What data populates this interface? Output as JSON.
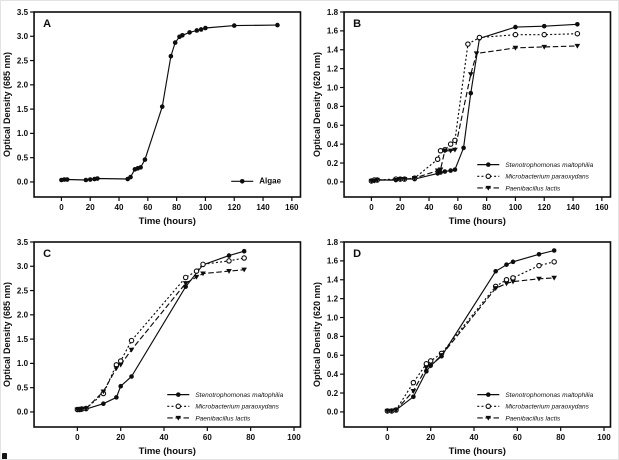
{
  "figure": {
    "background": "#ffffff",
    "ink_color": "#0d0d0d",
    "panels": [
      "A",
      "B",
      "C",
      "D"
    ]
  },
  "chart_data": [
    {
      "type": "line",
      "panel_label": "A",
      "xlabel": "Time (hours)",
      "ylabel": "Optical Density (685 nm)",
      "x_domain": [
        -19,
        166
      ],
      "y_domain": [
        -0.31,
        3.5
      ],
      "xticks": {
        "values": [
          0,
          20,
          40,
          60,
          80,
          100,
          120,
          140,
          160
        ],
        "labels": [
          "0",
          "20",
          "40",
          "60",
          "80",
          "100",
          "120",
          "140",
          "160"
        ]
      },
      "yticks": {
        "values": [
          0,
          0.5,
          1.0,
          1.5,
          2.0,
          2.5,
          3.0,
          3.5
        ],
        "labels": [
          "0.0",
          "0.5",
          "1.0",
          "1.5",
          "2.0",
          "2.5",
          "3.0",
          "3.5"
        ]
      },
      "grid": false,
      "legend": {
        "x_frac": 0.74,
        "row_fracs": [
          0.915
        ],
        "italic": false,
        "font_size": 8,
        "bold": true
      },
      "series": [
        {
          "name": "Algae",
          "marker": "circle-filled",
          "line": "solid",
          "color": "#0d0d0d",
          "points": [
            [
              0,
              0.04
            ],
            [
              2,
              0.05
            ],
            [
              4,
              0.05
            ],
            [
              17,
              0.04
            ],
            [
              20,
              0.05
            ],
            [
              23,
              0.06
            ],
            [
              25,
              0.07
            ],
            [
              46,
              0.06
            ],
            [
              48,
              0.1
            ],
            [
              51,
              0.26
            ],
            [
              53,
              0.28
            ],
            [
              55,
              0.3
            ],
            [
              58,
              0.46
            ],
            [
              70,
              1.55
            ],
            [
              76,
              2.59
            ],
            [
              79,
              2.87
            ],
            [
              82,
              2.99
            ],
            [
              84,
              3.02
            ],
            [
              89,
              3.08
            ],
            [
              94,
              3.12
            ],
            [
              97,
              3.14
            ],
            [
              100,
              3.17
            ],
            [
              120,
              3.22
            ],
            [
              150,
              3.23
            ]
          ]
        }
      ]
    },
    {
      "type": "line",
      "panel_label": "B",
      "xlabel": "Time (hours)",
      "ylabel": "Optical Density (620 nm)",
      "x_domain": [
        -19,
        166
      ],
      "y_domain": [
        -0.16,
        1.8
      ],
      "xticks": {
        "values": [
          0,
          20,
          40,
          60,
          80,
          100,
          120,
          140,
          160
        ],
        "labels": [
          "0",
          "20",
          "40",
          "60",
          "80",
          "100",
          "120",
          "140",
          "160"
        ]
      },
      "yticks": {
        "values": [
          0,
          0.2,
          0.4,
          0.6,
          0.8,
          1.0,
          1.2,
          1.4,
          1.6,
          1.8
        ],
        "labels": [
          "0.0",
          "0.2",
          "0.4",
          "0.6",
          "0.8",
          "1.0",
          "1.2",
          "1.4",
          "1.6",
          "1.8"
        ]
      },
      "grid": false,
      "legend": {
        "x_frac": 0.5,
        "row_fracs": [
          0.825,
          0.888,
          0.951
        ],
        "italic": true,
        "font_size": 6.5,
        "bold": false
      },
      "series": [
        {
          "name": "Stenotrophomonas maltophilia",
          "marker": "circle-filled",
          "line": "solid",
          "color": "#0d0d0d",
          "points": [
            [
              0,
              0.01
            ],
            [
              2,
              0.02
            ],
            [
              4,
              0.02
            ],
            [
              17,
              0.02
            ],
            [
              20,
              0.03
            ],
            [
              23,
              0.03
            ],
            [
              30,
              0.03
            ],
            [
              46,
              0.09
            ],
            [
              48,
              0.1
            ],
            [
              51,
              0.11
            ],
            [
              55,
              0.12
            ],
            [
              58,
              0.13
            ],
            [
              64,
              0.36
            ],
            [
              69,
              0.94
            ],
            [
              75,
              1.52
            ],
            [
              100,
              1.64
            ],
            [
              120,
              1.65
            ],
            [
              143,
              1.67
            ]
          ]
        },
        {
          "name": "Microbacterium paraoxydans",
          "marker": "circle-open",
          "line": "dotted",
          "color": "#0d0d0d",
          "points": [
            [
              0,
              0.01
            ],
            [
              2,
              0.02
            ],
            [
              4,
              0.02
            ],
            [
              17,
              0.03
            ],
            [
              20,
              0.03
            ],
            [
              23,
              0.03
            ],
            [
              30,
              0.04
            ],
            [
              46,
              0.24
            ],
            [
              48,
              0.33
            ],
            [
              51,
              0.34
            ],
            [
              55,
              0.4
            ],
            [
              58,
              0.44
            ],
            [
              67,
              1.46
            ],
            [
              75,
              1.53
            ],
            [
              100,
              1.56
            ],
            [
              120,
              1.56
            ],
            [
              143,
              1.57
            ]
          ]
        },
        {
          "name": "Paenibacillus lactis",
          "marker": "triangle-down-filled",
          "line": "dashed",
          "color": "#0d0d0d",
          "points": [
            [
              0,
              0.01
            ],
            [
              2,
              0.01
            ],
            [
              4,
              0.02
            ],
            [
              17,
              0.02
            ],
            [
              20,
              0.03
            ],
            [
              23,
              0.03
            ],
            [
              30,
              0.04
            ],
            [
              46,
              0.12
            ],
            [
              48,
              0.13
            ],
            [
              51,
              0.33
            ],
            [
              55,
              0.33
            ],
            [
              58,
              0.34
            ],
            [
              69,
              1.14
            ],
            [
              73,
              1.36
            ],
            [
              100,
              1.42
            ],
            [
              120,
              1.43
            ],
            [
              143,
              1.44
            ]
          ]
        }
      ]
    },
    {
      "type": "line",
      "panel_label": "C",
      "xlabel": "Time (hours)",
      "ylabel": "Optical Density (685 nm)",
      "x_domain": [
        -20,
        103
      ],
      "y_domain": [
        -0.31,
        3.5
      ],
      "xticks": {
        "values": [
          0,
          20,
          40,
          60,
          80,
          100
        ],
        "labels": [
          "0",
          "20",
          "40",
          "60",
          "80",
          "100"
        ]
      },
      "yticks": {
        "values": [
          0,
          0.5,
          1.0,
          1.5,
          2.0,
          2.5,
          3.0,
          3.5
        ],
        "labels": [
          "0.0",
          "0.5",
          "1.0",
          "1.5",
          "2.0",
          "2.5",
          "3.0",
          "3.5"
        ]
      },
      "grid": false,
      "legend": {
        "x_frac": 0.5,
        "row_fracs": [
          0.825,
          0.888,
          0.951
        ],
        "italic": true,
        "font_size": 6.5,
        "bold": false
      },
      "series": [
        {
          "name": "Stenotrophomonas maltophilia",
          "marker": "circle-filled",
          "line": "solid",
          "color": "#0d0d0d",
          "points": [
            [
              0,
              0.05
            ],
            [
              1,
              0.05
            ],
            [
              2,
              0.05
            ],
            [
              4,
              0.06
            ],
            [
              12,
              0.17
            ],
            [
              18,
              0.3
            ],
            [
              20,
              0.53
            ],
            [
              25,
              0.73
            ],
            [
              50,
              2.58
            ],
            [
              58,
              3.03
            ],
            [
              70,
              3.22
            ],
            [
              77,
              3.31
            ]
          ]
        },
        {
          "name": "Microbacterium paraoxydans",
          "marker": "circle-open",
          "line": "dotted",
          "color": "#0d0d0d",
          "points": [
            [
              0,
              0.05
            ],
            [
              1,
              0.05
            ],
            [
              2,
              0.06
            ],
            [
              4,
              0.07
            ],
            [
              12,
              0.38
            ],
            [
              18,
              0.97
            ],
            [
              20,
              1.05
            ],
            [
              25,
              1.47
            ],
            [
              50,
              2.77
            ],
            [
              55,
              2.9
            ],
            [
              58,
              3.04
            ],
            [
              70,
              3.11
            ],
            [
              77,
              3.17
            ]
          ]
        },
        {
          "name": "Paenibacillus lactis",
          "marker": "triangle-down-filled",
          "line": "dashed",
          "color": "#0d0d0d",
          "points": [
            [
              0,
              0.05
            ],
            [
              1,
              0.05
            ],
            [
              2,
              0.06
            ],
            [
              4,
              0.07
            ],
            [
              12,
              0.42
            ],
            [
              18,
              0.9
            ],
            [
              20,
              0.97
            ],
            [
              25,
              1.28
            ],
            [
              50,
              2.65
            ],
            [
              55,
              2.78
            ],
            [
              58,
              2.85
            ],
            [
              70,
              2.9
            ],
            [
              77,
              2.93
            ]
          ]
        }
      ]
    },
    {
      "type": "line",
      "panel_label": "D",
      "xlabel": "Time (hours)",
      "ylabel": "Optical Density (620 nm)",
      "x_domain": [
        -20,
        103
      ],
      "y_domain": [
        -0.16,
        1.8
      ],
      "xticks": {
        "values": [
          0,
          20,
          40,
          60,
          80,
          100
        ],
        "labels": [
          "0",
          "20",
          "40",
          "60",
          "80",
          "100"
        ]
      },
      "yticks": {
        "values": [
          0,
          0.2,
          0.4,
          0.6,
          0.8,
          1.0,
          1.2,
          1.4,
          1.6,
          1.8
        ],
        "labels": [
          "0.0",
          "0.2",
          "0.4",
          "0.6",
          "0.8",
          "1.0",
          "1.2",
          "1.4",
          "1.6",
          "1.8"
        ]
      },
      "grid": false,
      "legend": {
        "x_frac": 0.5,
        "row_fracs": [
          0.825,
          0.888,
          0.951
        ],
        "italic": true,
        "font_size": 6.5,
        "bold": false
      },
      "series": [
        {
          "name": "Stenotrophomonas maltophilia",
          "marker": "circle-filled",
          "line": "solid",
          "color": "#0d0d0d",
          "points": [
            [
              0,
              0.01
            ],
            [
              2,
              0.01
            ],
            [
              4,
              0.02
            ],
            [
              12,
              0.16
            ],
            [
              18,
              0.43
            ],
            [
              20,
              0.49
            ],
            [
              25,
              0.59
            ],
            [
              50,
              1.49
            ],
            [
              55,
              1.56
            ],
            [
              58,
              1.59
            ],
            [
              70,
              1.67
            ],
            [
              77,
              1.71
            ]
          ]
        },
        {
          "name": "Microbacterium paraoxydans",
          "marker": "circle-open",
          "line": "dotted",
          "color": "#0d0d0d",
          "points": [
            [
              0,
              0.01
            ],
            [
              2,
              0.01
            ],
            [
              4,
              0.02
            ],
            [
              12,
              0.31
            ],
            [
              18,
              0.51
            ],
            [
              20,
              0.54
            ],
            [
              25,
              0.62
            ],
            [
              50,
              1.33
            ],
            [
              55,
              1.4
            ],
            [
              58,
              1.42
            ],
            [
              70,
              1.55
            ],
            [
              77,
              1.59
            ]
          ]
        },
        {
          "name": "Paenibacillus lactis",
          "marker": "triangle-down-filled",
          "line": "dashed",
          "color": "#0d0d0d",
          "points": [
            [
              0,
              0.01
            ],
            [
              2,
              0.01
            ],
            [
              4,
              0.02
            ],
            [
              12,
              0.22
            ],
            [
              18,
              0.47
            ],
            [
              20,
              0.49
            ],
            [
              25,
              0.6
            ],
            [
              50,
              1.31
            ],
            [
              55,
              1.36
            ],
            [
              58,
              1.38
            ],
            [
              70,
              1.41
            ],
            [
              77,
              1.42
            ]
          ]
        }
      ]
    }
  ]
}
